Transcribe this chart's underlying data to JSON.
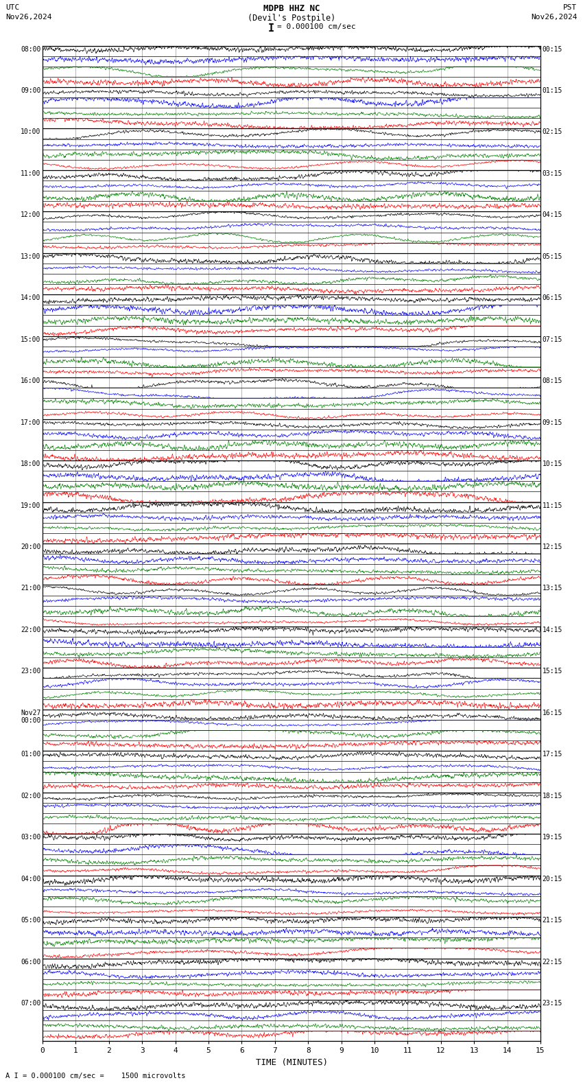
{
  "title_line1": "MDPB HHZ NC",
  "title_line2": "(Devil's Postpile)",
  "scale_text": "= 0.000100 cm/sec",
  "footer_text": "A I = 0.000100 cm/sec =    1500 microvolts",
  "utc_label": "UTC",
  "utc_date": "Nov26,2024",
  "pst_label": "PST",
  "pst_date": "Nov26,2024",
  "xlabel": "TIME (MINUTES)",
  "left_times": [
    "08:00",
    "09:00",
    "10:00",
    "11:00",
    "12:00",
    "13:00",
    "14:00",
    "15:00",
    "16:00",
    "17:00",
    "18:00",
    "19:00",
    "20:00",
    "21:00",
    "22:00",
    "23:00",
    "Nov27\n00:00",
    "01:00",
    "02:00",
    "03:00",
    "04:00",
    "05:00",
    "06:00",
    "07:00"
  ],
  "right_times": [
    "00:15",
    "01:15",
    "02:15",
    "03:15",
    "04:15",
    "05:15",
    "06:15",
    "07:15",
    "08:15",
    "09:15",
    "10:15",
    "11:15",
    "12:15",
    "13:15",
    "14:15",
    "15:15",
    "16:15",
    "17:15",
    "18:15",
    "19:15",
    "20:15",
    "21:15",
    "22:15",
    "23:15"
  ],
  "num_rows": 24,
  "traces_per_row": 4,
  "colors": [
    "black",
    "blue",
    "green",
    "red"
  ],
  "bg_color": "#ffffff",
  "grid_color": "#999999",
  "time_minutes": 15,
  "xticks": [
    0,
    1,
    2,
    3,
    4,
    5,
    6,
    7,
    8,
    9,
    10,
    11,
    12,
    13,
    14,
    15
  ]
}
